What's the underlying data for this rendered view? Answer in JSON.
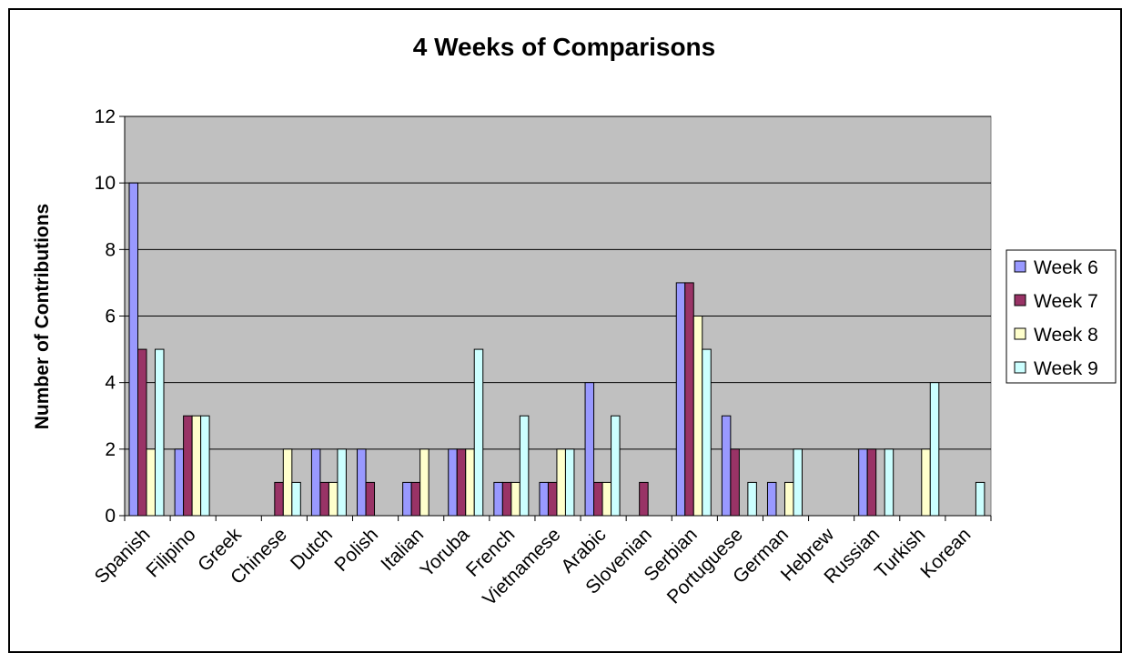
{
  "chart_data": {
    "type": "bar",
    "title": "4 Weeks of Comparisons",
    "xlabel": "",
    "ylabel": "Number of Contributions",
    "ylim": [
      0,
      12
    ],
    "yticks": [
      "0",
      "2",
      "4",
      "6",
      "8",
      "10",
      "12"
    ],
    "grid": true,
    "legend_position": "right",
    "categories": [
      "Spanish",
      "Filipino",
      "Greek",
      "Chinese",
      "Dutch",
      "Polish",
      "Italian",
      "Yoruba",
      "French",
      "Vietnamese",
      "Arabic",
      "Slovenian",
      "Serbian",
      "Portuguese",
      "German",
      "Hebrew",
      "Russian",
      "Turkish",
      "Korean"
    ],
    "series": [
      {
        "name": "Week 6",
        "color": "#9999ff",
        "values": [
          10,
          2,
          0,
          0,
          2,
          2,
          1,
          2,
          1,
          1,
          4,
          0,
          7,
          3,
          1,
          0,
          2,
          0,
          0
        ]
      },
      {
        "name": "Week 7",
        "color": "#993366",
        "values": [
          5,
          3,
          0,
          1,
          1,
          1,
          1,
          2,
          1,
          1,
          1,
          1,
          7,
          2,
          0,
          0,
          2,
          0,
          0
        ]
      },
      {
        "name": "Week 8",
        "color": "#ffffcc",
        "values": [
          2,
          3,
          0,
          2,
          1,
          0,
          2,
          2,
          1,
          2,
          1,
          0,
          6,
          0,
          1,
          0,
          0,
          2,
          0
        ]
      },
      {
        "name": "Week 9",
        "color": "#ccffff",
        "values": [
          5,
          3,
          0,
          1,
          2,
          0,
          0,
          5,
          3,
          2,
          3,
          0,
          5,
          1,
          2,
          0,
          2,
          4,
          1
        ]
      }
    ],
    "colors": {
      "plot_background": "#c0c0c0",
      "gridline": "#000000"
    }
  }
}
